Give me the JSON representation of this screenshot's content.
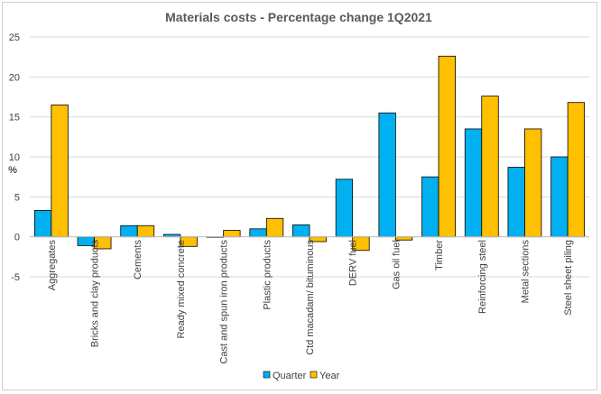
{
  "chart_data": {
    "type": "bar",
    "title": "Materials costs - Percentage change 1Q2021",
    "ylabel": "%",
    "xlabel": "",
    "ylim": [
      -5,
      25
    ],
    "yticks": [
      -5,
      0,
      5,
      10,
      15,
      20,
      25
    ],
    "grid": true,
    "legend_position": "bottom",
    "categories": [
      "Aggregates",
      "Bricks and clay products",
      "Cements",
      "Ready mixed concrete",
      "Cast and spun iron products",
      "Plastic products",
      "Ctd macadam/ bituminous",
      "DERV fuel",
      "Gas oil fuel",
      "Timber",
      "Reinforcing steel",
      "Metal sections",
      "Steel sheet piling"
    ],
    "series": [
      {
        "name": "Quarter",
        "color": "#00B0F0",
        "values": [
          3.3,
          -1.1,
          1.4,
          0.3,
          0.0,
          1.0,
          1.5,
          7.2,
          15.5,
          7.5,
          13.5,
          8.7,
          10.0
        ]
      },
      {
        "name": "Year",
        "color": "#FFC000",
        "values": [
          16.5,
          -1.5,
          1.4,
          -1.2,
          0.8,
          2.3,
          -0.6,
          -1.7,
          -0.4,
          22.6,
          17.6,
          13.5,
          16.8
        ]
      }
    ]
  }
}
